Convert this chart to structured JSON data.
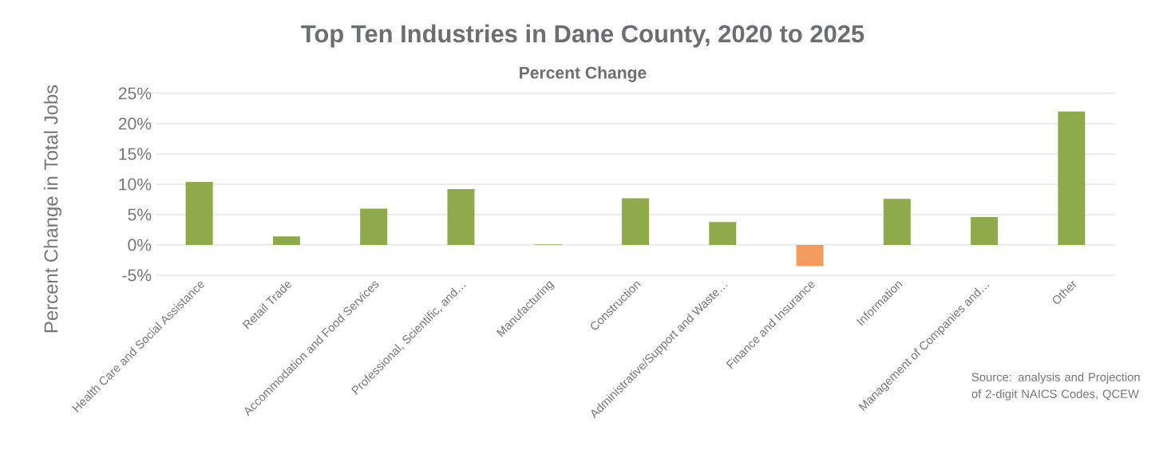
{
  "chart_data": {
    "type": "bar",
    "title": "Top Ten Industries in Dane County, 2020 to 2025",
    "subtitle": "Percent Change",
    "ylabel": "Percent Change in Total Jobs",
    "categories": [
      "Health Care and Social Assistance",
      "Retail Trade",
      "Accommodation and Food Services",
      "Professional, Scientific, and…",
      "Manufacturing",
      "Construction",
      "Administrative/Support and Waste…",
      "Finance and Insurance",
      "Information",
      "Management of Companies and…",
      "Other"
    ],
    "values": [
      10.4,
      1.4,
      6.0,
      9.2,
      0.1,
      7.7,
      3.8,
      -3.5,
      7.6,
      4.6,
      22.0
    ],
    "colors": [
      "#8faa4a",
      "#8faa4a",
      "#8faa4a",
      "#8faa4a",
      "#8faa4a",
      "#8faa4a",
      "#8faa4a",
      "#f19c5d",
      "#8faa4a",
      "#8faa4a",
      "#8faa4a"
    ],
    "ylim": [
      -5,
      25
    ],
    "yticks": [
      {
        "value": -5,
        "label": "-5%"
      },
      {
        "value": 0,
        "label": "0%"
      },
      {
        "value": 5,
        "label": "5%"
      },
      {
        "value": 10,
        "label": "10%"
      },
      {
        "value": 15,
        "label": "15%"
      },
      {
        "value": 20,
        "label": "20%"
      },
      {
        "value": 25,
        "label": "25%"
      }
    ],
    "grid": "y",
    "annotations": [
      "Source: analysis and Projection of 2-digit NAICS Codes, QCEW"
    ]
  }
}
